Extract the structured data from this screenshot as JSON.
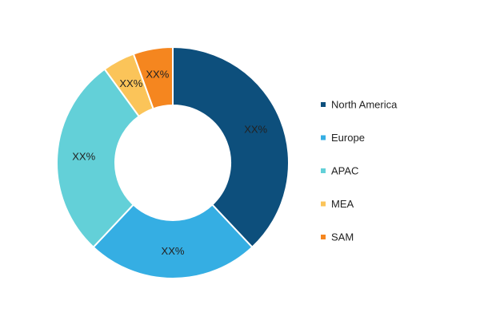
{
  "chart_data": {
    "type": "donut",
    "categories": [
      "North America",
      "Europe",
      "APAC",
      "MEA",
      "SAM"
    ],
    "values": [
      38,
      24,
      28,
      4.5,
      5.5
    ],
    "value_labels": [
      "XX%",
      "XX%",
      "XX%",
      "XX%",
      "XX%"
    ],
    "colors": [
      "#0d4f7c",
      "#35aee3",
      "#63d0d8",
      "#fbc459",
      "#f5861f"
    ],
    "legend": "right"
  }
}
